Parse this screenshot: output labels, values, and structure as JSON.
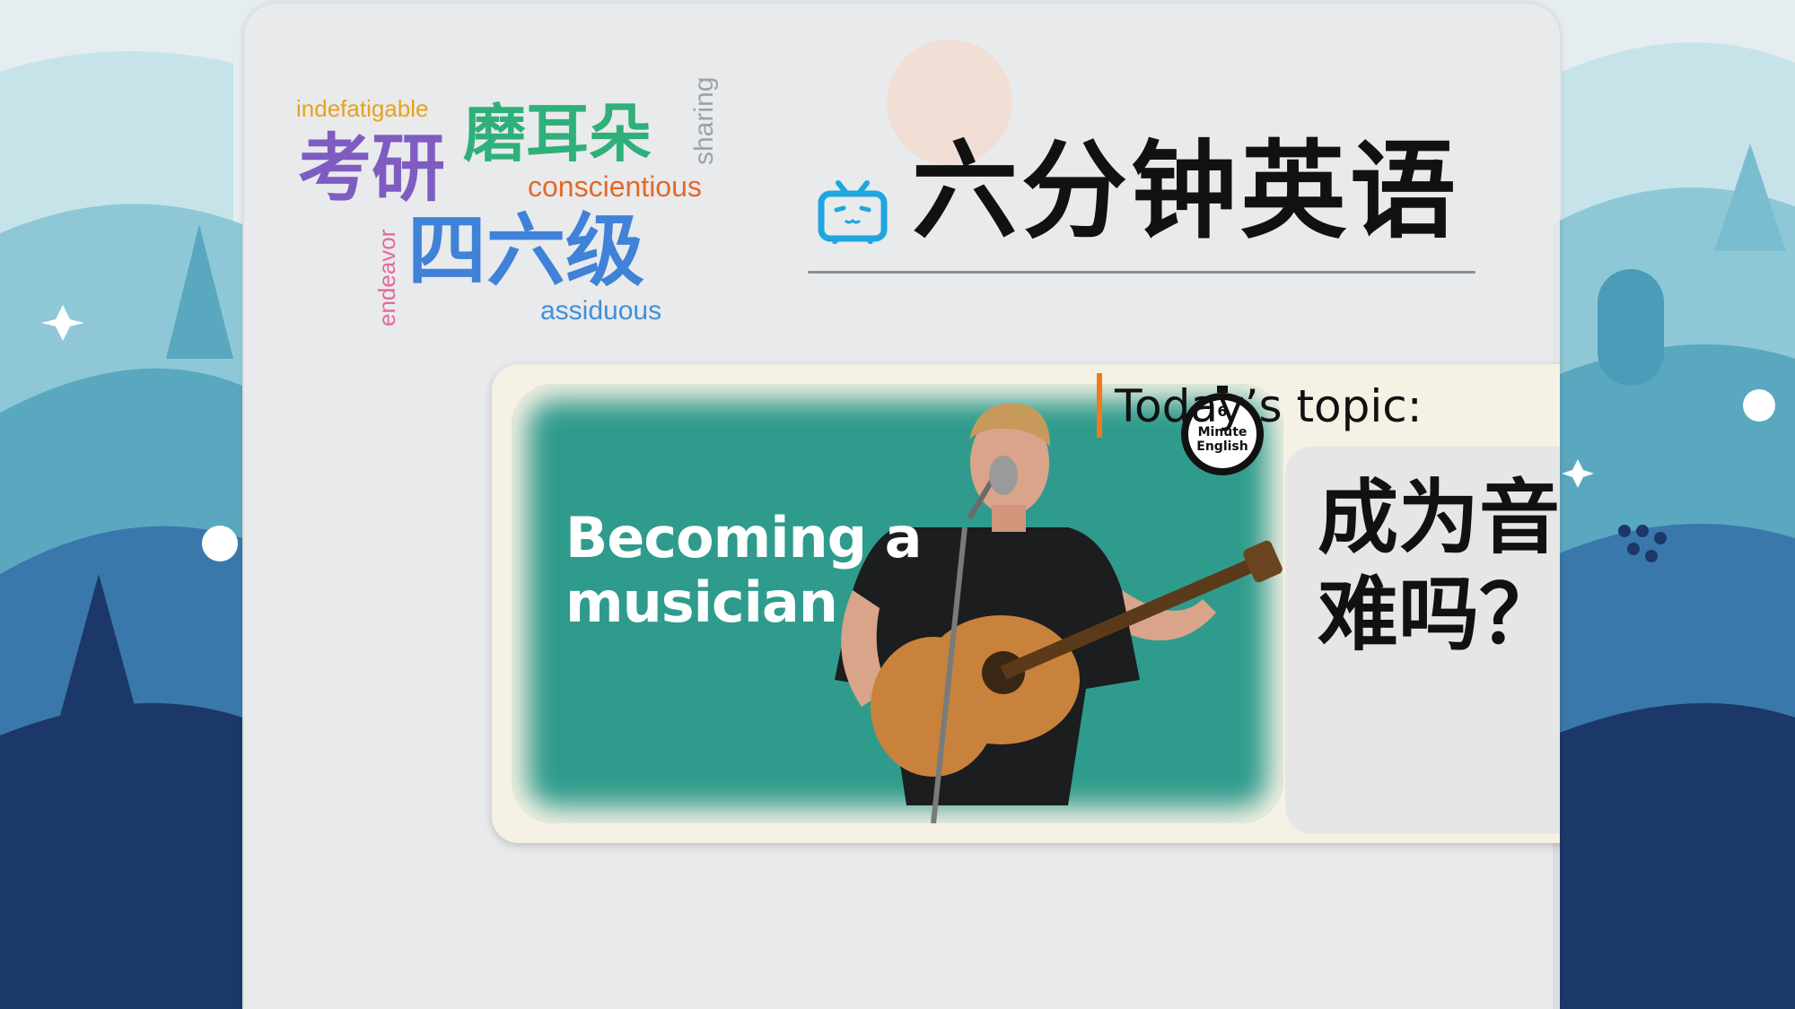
{
  "wordcloud": {
    "indefatigable": "indefatigable",
    "moerduo": "磨耳朵",
    "sharing": "sharing",
    "kaoyan": "考研",
    "conscientious": "conscientious",
    "endeavor": "endeavor",
    "siliuji": "四六级",
    "assiduous": "assiduous"
  },
  "header": {
    "title": "六分钟英语",
    "icon": "bilibili-tv-icon"
  },
  "thumbnail": {
    "line1": "Becoming a",
    "line2": "musician",
    "badge_line1": "Minute",
    "badge_line2": "English",
    "badge_number": "6"
  },
  "topic": {
    "label": "Today’s topic:",
    "line1": "成为音乐家",
    "line2": "难吗？"
  },
  "colors": {
    "accent_orange": "#f07a1a",
    "icon_blue": "#1fa6de",
    "thumbnail_teal": "#2f9b8c"
  }
}
